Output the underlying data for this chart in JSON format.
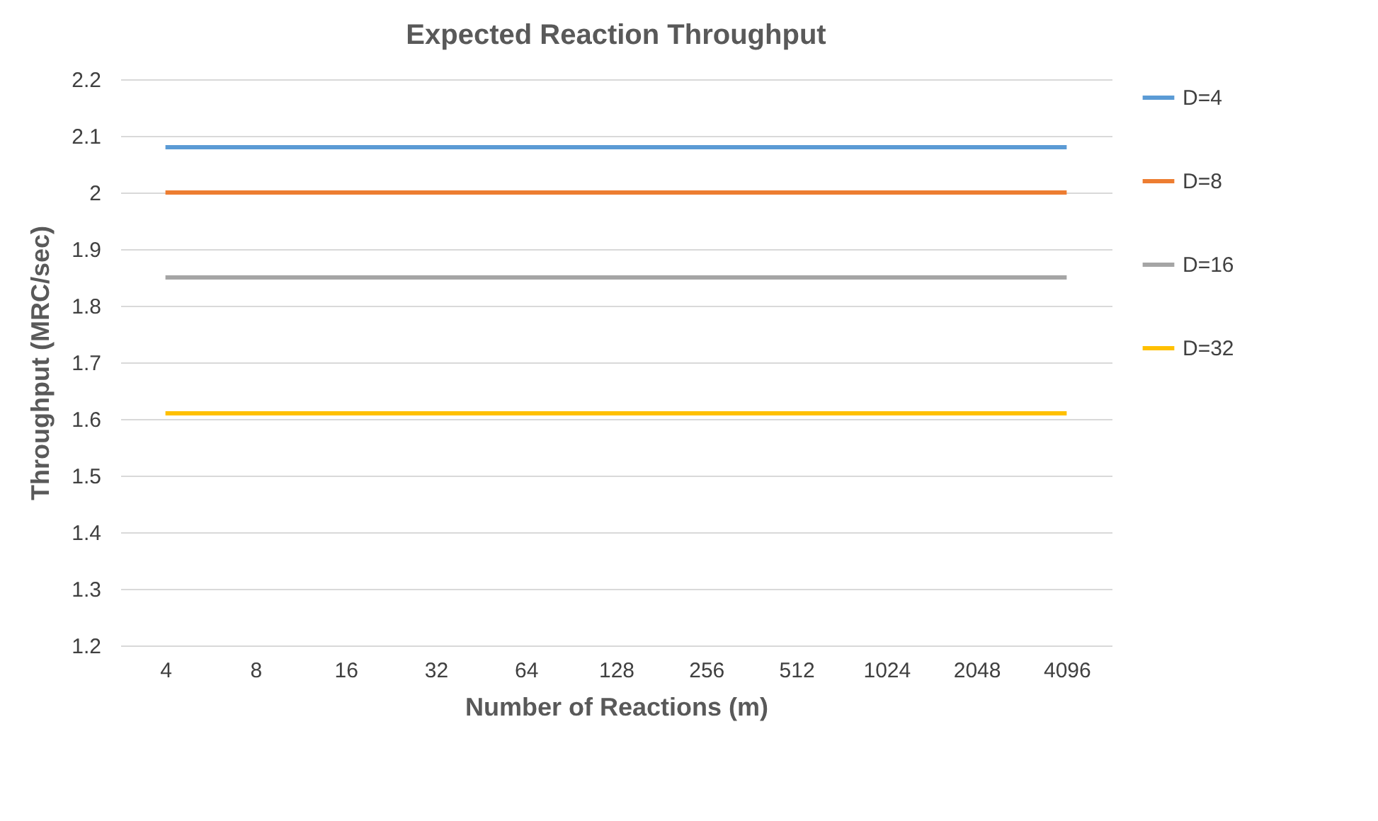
{
  "chart_data": {
    "type": "line",
    "title": "Expected Reaction Throughput",
    "xlabel": "Number of Reactions (m)",
    "ylabel": "Throughput (MRC/sec)",
    "categories": [
      "4",
      "8",
      "16",
      "32",
      "64",
      "128",
      "256",
      "512",
      "1024",
      "2048",
      "4096"
    ],
    "series": [
      {
        "name": "D=4",
        "color": "#5b9bd5",
        "values": [
          2.08,
          2.08,
          2.08,
          2.08,
          2.08,
          2.08,
          2.08,
          2.08,
          2.08,
          2.08,
          2.08
        ]
      },
      {
        "name": "D=8",
        "color": "#ed7d31",
        "values": [
          2,
          2,
          2,
          2,
          2,
          2,
          2,
          2,
          2,
          2,
          2
        ]
      },
      {
        "name": "D=16",
        "color": "#a5a5a5",
        "values": [
          1.85,
          1.85,
          1.85,
          1.85,
          1.85,
          1.85,
          1.85,
          1.85,
          1.85,
          1.85,
          1.85
        ]
      },
      {
        "name": "D=32",
        "color": "#ffc000",
        "values": [
          1.61,
          1.61,
          1.61,
          1.61,
          1.61,
          1.61,
          1.61,
          1.61,
          1.61,
          1.61,
          1.61
        ]
      }
    ],
    "ylim": [
      1.2,
      2.2
    ],
    "yticks": [
      1.2,
      1.3,
      1.4,
      1.5,
      1.6,
      1.7,
      1.8,
      1.9,
      2,
      2.1,
      2.2
    ],
    "grid": "y",
    "legend": "right",
    "marker": "none",
    "line_style": "solid"
  }
}
